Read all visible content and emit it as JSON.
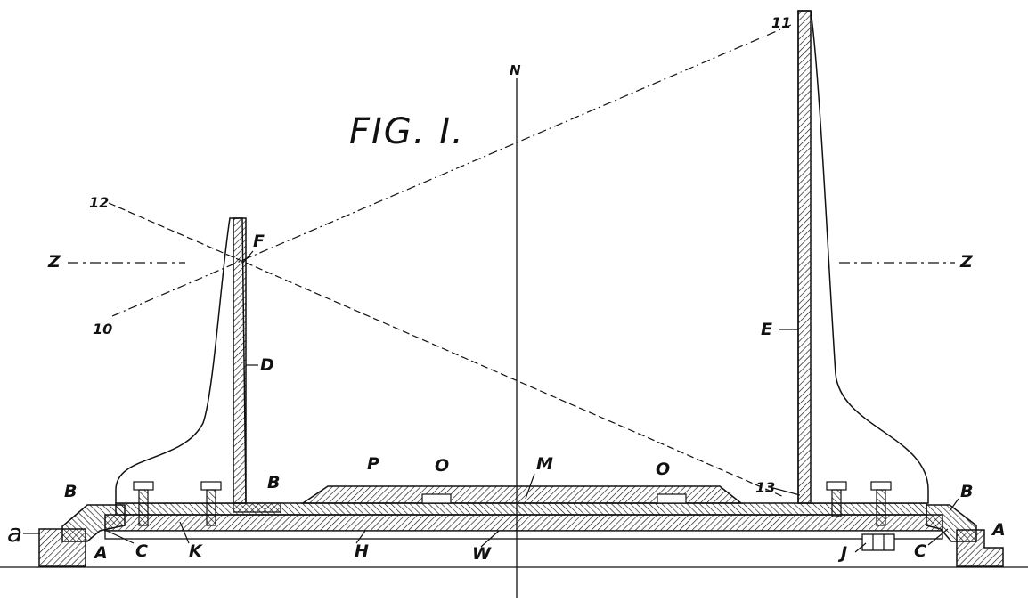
{
  "figure": {
    "title": "FIG. I.",
    "labels": {
      "a": "a",
      "A_left": "A",
      "A_right": "A",
      "B_left": "B",
      "B_mid": "B",
      "B_right": "B",
      "C_left": "C",
      "C_right": "C",
      "D": "D",
      "E": "E",
      "F": "F",
      "H": "H",
      "J": "J",
      "K": "K",
      "M": "M",
      "N": "N",
      "O_left": "O",
      "O_right": "O",
      "P": "P",
      "W": "W",
      "Z_left": "Z",
      "Z_right": "Z",
      "n10": "10",
      "n11": "11",
      "n12": "12",
      "n13": "13"
    },
    "colors": {
      "ink": "#111111",
      "background": "#ffffff"
    }
  }
}
